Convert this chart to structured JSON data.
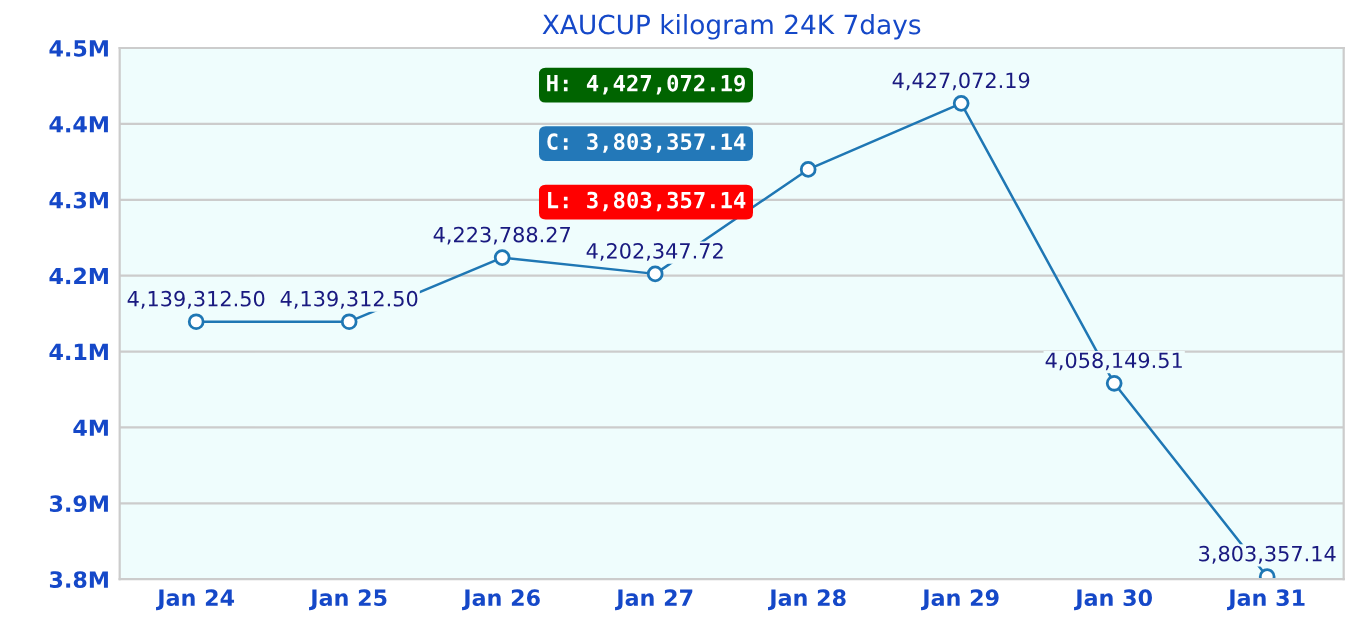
{
  "chart_data": {
    "type": "line",
    "title": "XAUCUP kilogram 24K 7days",
    "categories": [
      "Jan 24",
      "Jan 25",
      "Jan 26",
      "Jan 27",
      "Jan 28",
      "Jan 29",
      "Jan 30",
      "Jan 31"
    ],
    "series": [
      {
        "color": "#1f77b4",
        "values": [
          4139312.5,
          4139312.5,
          4223788.27,
          4202347.72,
          4340000,
          4427072.19,
          4058149.51,
          3803357.14
        ],
        "value_labels": [
          "4,139,312.50",
          "4,139,312.50",
          "4,223,788.27",
          "4,202,347.72",
          null,
          "4,427,072.19",
          "4,058,149.51",
          "3,803,357.14"
        ]
      }
    ],
    "ylim": [
      3800000,
      4500000
    ],
    "yticks": [
      {
        "value": 3800000,
        "label": "3.8M"
      },
      {
        "value": 3900000,
        "label": "3.9M"
      },
      {
        "value": 4000000,
        "label": "4M"
      },
      {
        "value": 4100000,
        "label": "4.1M"
      },
      {
        "value": 4200000,
        "label": "4.2M"
      },
      {
        "value": 4300000,
        "label": "4.3M"
      },
      {
        "value": 4400000,
        "label": "4.4M"
      },
      {
        "value": 4500000,
        "label": "4.5M"
      }
    ],
    "grid": "y",
    "marker": "circle",
    "line_style": "solid",
    "annotations": [
      "H: 4,427,072.19",
      "C: 3,803,357.14",
      "L: 3,803,357.14"
    ]
  }
}
